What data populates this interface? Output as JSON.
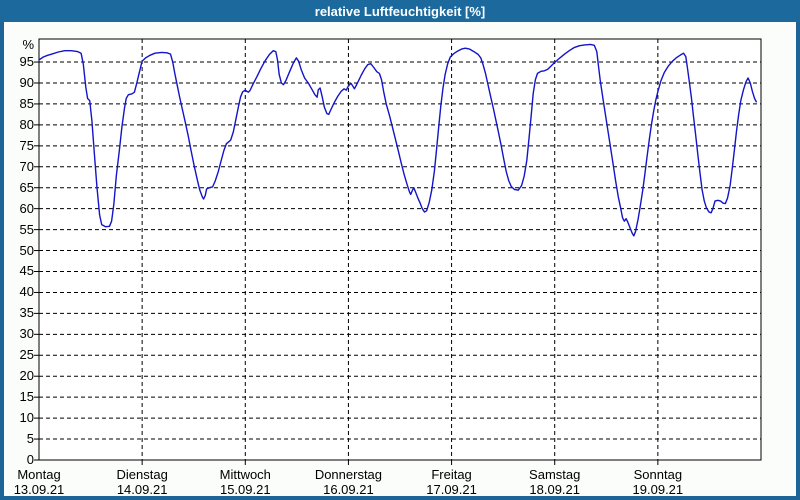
{
  "window": {
    "title": "relative Luftfeuchtigkeit [%]"
  },
  "colors": {
    "titlebar_bg": "#1b699d",
    "frame": "#1f6496",
    "content_bg": "#fbfdfa",
    "plot_bg": "#ffffff",
    "grid": "#000000",
    "line": "#1414c8",
    "title_text": "#ffffff",
    "axis_text": "#000000"
  },
  "chart_data": {
    "type": "line",
    "title": "relative Luftfeuchtigkeit [%]",
    "unit_label": "%",
    "ylabel": "relative Luftfeuchtigkeit",
    "ylim": [
      0,
      100.5
    ],
    "y_ticks": [
      0,
      5,
      10,
      15,
      20,
      25,
      30,
      35,
      40,
      45,
      50,
      55,
      60,
      65,
      70,
      75,
      80,
      85,
      90,
      95
    ],
    "grid": "dashed",
    "legend_position": "none",
    "x_hours_total": 168,
    "x_days": [
      {
        "name": "Montag",
        "date": "13.09.21"
      },
      {
        "name": "Dienstag",
        "date": "14.09.21"
      },
      {
        "name": "Mittwoch",
        "date": "15.09.21"
      },
      {
        "name": "Donnerstag",
        "date": "16.09.21"
      },
      {
        "name": "Freitag",
        "date": "17.09.21"
      },
      {
        "name": "Samstag",
        "date": "18.09.21"
      },
      {
        "name": "Sonntag",
        "date": "19.09.21"
      }
    ],
    "series": [
      {
        "name": "relative Luftfeuchtigkeit [%]",
        "color": "#1414c8",
        "points": [
          [
            0,
            95.5
          ],
          [
            1,
            96.2
          ],
          [
            2,
            96.6
          ],
          [
            3,
            96.9
          ],
          [
            4.5,
            97.4
          ],
          [
            6,
            97.7
          ],
          [
            7.5,
            97.7
          ],
          [
            9,
            97.5
          ],
          [
            9.8,
            97.1
          ],
          [
            10.3,
            94.5
          ],
          [
            10.9,
            89
          ],
          [
            11.3,
            86.3
          ],
          [
            11.8,
            85.8
          ],
          [
            12.3,
            81
          ],
          [
            12.9,
            73
          ],
          [
            13.5,
            65
          ],
          [
            14.1,
            58.5
          ],
          [
            14.6,
            56.2
          ],
          [
            15.5,
            55.7
          ],
          [
            16.4,
            55.8
          ],
          [
            16.9,
            57
          ],
          [
            17.4,
            61
          ],
          [
            18,
            68
          ],
          [
            18.7,
            74
          ],
          [
            19.3,
            79.5
          ],
          [
            19.9,
            84
          ],
          [
            20.3,
            86.3
          ],
          [
            20.8,
            87.2
          ],
          [
            21.6,
            87.4
          ],
          [
            22.2,
            87.8
          ],
          [
            22.7,
            89.8
          ],
          [
            23.3,
            92.3
          ],
          [
            24,
            95.2
          ],
          [
            24.8,
            96
          ],
          [
            25.8,
            96.6
          ],
          [
            27,
            97.1
          ],
          [
            28.5,
            97.3
          ],
          [
            29.8,
            97.2
          ],
          [
            30.6,
            96.9
          ],
          [
            31.1,
            95
          ],
          [
            31.6,
            92.3
          ],
          [
            32.1,
            89.7
          ],
          [
            32.7,
            86.8
          ],
          [
            33.3,
            84
          ],
          [
            34,
            80.8
          ],
          [
            34.7,
            77.5
          ],
          [
            35.4,
            73.8
          ],
          [
            36.1,
            70.3
          ],
          [
            36.8,
            67
          ],
          [
            37.4,
            64.5
          ],
          [
            38,
            62.8
          ],
          [
            38.3,
            62.3
          ],
          [
            38.7,
            63.2
          ],
          [
            39,
            64.7
          ],
          [
            39.6,
            65
          ],
          [
            40.4,
            65.2
          ],
          [
            41,
            66.6
          ],
          [
            41.7,
            68.8
          ],
          [
            42.4,
            71.5
          ],
          [
            43,
            73.8
          ],
          [
            43.6,
            75.5
          ],
          [
            44.2,
            76
          ],
          [
            44.6,
            76.4
          ],
          [
            45.2,
            78.3
          ],
          [
            45.8,
            81.2
          ],
          [
            46.4,
            84.3
          ],
          [
            46.9,
            86.7
          ],
          [
            47.4,
            87.9
          ],
          [
            48,
            88.3
          ],
          [
            48.4,
            88
          ],
          [
            48.7,
            87.8
          ],
          [
            49.1,
            88.2
          ],
          [
            49.8,
            89.7
          ],
          [
            50.7,
            91.5
          ],
          [
            51.6,
            93.4
          ],
          [
            52.6,
            95.3
          ],
          [
            53.6,
            96.8
          ],
          [
            54.5,
            97.7
          ],
          [
            55.1,
            97.5
          ],
          [
            55.5,
            95.5
          ],
          [
            55.9,
            92
          ],
          [
            56.4,
            90
          ],
          [
            56.9,
            89.6
          ],
          [
            57.5,
            90.7
          ],
          [
            58.3,
            92.7
          ],
          [
            59.2,
            94.8
          ],
          [
            59.9,
            96
          ],
          [
            60.4,
            95.2
          ],
          [
            61,
            93.2
          ],
          [
            61.8,
            91.2
          ],
          [
            62.7,
            89.9
          ],
          [
            63.5,
            88.5
          ],
          [
            64.2,
            87.2
          ],
          [
            64.7,
            86.6
          ],
          [
            65,
            88.4
          ],
          [
            65.4,
            88.8
          ],
          [
            65.9,
            86.7
          ],
          [
            66.4,
            84.2
          ],
          [
            67,
            82.7
          ],
          [
            67.4,
            82.5
          ],
          [
            68,
            83.8
          ],
          [
            68.7,
            85.3
          ],
          [
            69.5,
            86.8
          ],
          [
            70.3,
            88
          ],
          [
            71,
            88.6
          ],
          [
            71.5,
            88.3
          ],
          [
            72,
            89.3
          ],
          [
            72.6,
            89.9
          ],
          [
            73,
            89.3
          ],
          [
            73.4,
            88.6
          ],
          [
            73.8,
            89.4
          ],
          [
            74.3,
            90.4
          ],
          [
            75,
            91.9
          ],
          [
            75.8,
            93.4
          ],
          [
            76.5,
            94.4
          ],
          [
            77.2,
            94.6
          ],
          [
            77.9,
            93.7
          ],
          [
            78.6,
            92.7
          ],
          [
            79.2,
            92.3
          ],
          [
            79.7,
            90.8
          ],
          [
            80.2,
            87.9
          ],
          [
            80.8,
            85
          ],
          [
            81.5,
            82.4
          ],
          [
            82.2,
            79.6
          ],
          [
            82.9,
            76.7
          ],
          [
            83.6,
            73.8
          ],
          [
            84.3,
            70.8
          ],
          [
            85,
            68
          ],
          [
            85.7,
            65.6
          ],
          [
            86.2,
            64
          ],
          [
            86.5,
            63.4
          ],
          [
            86.9,
            64.4
          ],
          [
            87.2,
            65
          ],
          [
            87.6,
            64
          ],
          [
            88.2,
            62.4
          ],
          [
            88.7,
            61.3
          ],
          [
            89.2,
            60
          ],
          [
            89.7,
            59.2
          ],
          [
            90.2,
            59.5
          ],
          [
            90.8,
            61.5
          ],
          [
            91.4,
            64.5
          ],
          [
            92,
            69
          ],
          [
            92.5,
            74
          ],
          [
            93,
            79.5
          ],
          [
            93.5,
            84.5
          ],
          [
            94,
            88.8
          ],
          [
            94.5,
            92
          ],
          [
            95.1,
            94.6
          ],
          [
            95.7,
            96.2
          ],
          [
            96.5,
            97
          ],
          [
            97.4,
            97.6
          ],
          [
            98.3,
            98.1
          ],
          [
            99.2,
            98.3
          ],
          [
            100.2,
            98.1
          ],
          [
            101.2,
            97.5
          ],
          [
            102.2,
            96.8
          ],
          [
            102.8,
            96
          ],
          [
            103.3,
            94.5
          ],
          [
            103.9,
            92.3
          ],
          [
            104.5,
            89.5
          ],
          [
            105.1,
            86.7
          ],
          [
            105.7,
            84
          ],
          [
            106.3,
            81.2
          ],
          [
            106.9,
            78.3
          ],
          [
            107.5,
            75.3
          ],
          [
            108.1,
            72
          ],
          [
            108.7,
            68.9
          ],
          [
            109.3,
            66.7
          ],
          [
            109.9,
            65.3
          ],
          [
            110.6,
            64.6
          ],
          [
            111.5,
            64.4
          ],
          [
            112.3,
            65.5
          ],
          [
            112.9,
            67.8
          ],
          [
            113.5,
            71.5
          ],
          [
            114,
            76.5
          ],
          [
            114.5,
            82
          ],
          [
            115,
            87.5
          ],
          [
            115.5,
            90.8
          ],
          [
            116,
            92.3
          ],
          [
            116.8,
            92.8
          ],
          [
            117.6,
            92.9
          ],
          [
            118.4,
            93.3
          ],
          [
            119.3,
            94.2
          ],
          [
            120.2,
            95.1
          ],
          [
            121.2,
            96
          ],
          [
            122.3,
            96.9
          ],
          [
            123.5,
            97.8
          ],
          [
            124.6,
            98.5
          ],
          [
            125.8,
            98.9
          ],
          [
            127,
            99.1
          ],
          [
            128.3,
            99.2
          ],
          [
            129.2,
            99
          ],
          [
            129.8,
            97.5
          ],
          [
            130.2,
            94
          ],
          [
            130.6,
            90.5
          ],
          [
            131.2,
            86.5
          ],
          [
            131.8,
            82.5
          ],
          [
            132.4,
            78.5
          ],
          [
            133,
            74.5
          ],
          [
            133.6,
            70.5
          ],
          [
            134.2,
            66.5
          ],
          [
            134.8,
            62.8
          ],
          [
            135.3,
            60.3
          ],
          [
            135.8,
            57.8
          ],
          [
            136.2,
            57
          ],
          [
            136.6,
            57.6
          ],
          [
            137,
            56.8
          ],
          [
            137.5,
            55.5
          ],
          [
            138,
            54.2
          ],
          [
            138.4,
            53.5
          ],
          [
            138.8,
            54.5
          ],
          [
            139.4,
            57.5
          ],
          [
            139.9,
            60.5
          ],
          [
            140.5,
            64.5
          ],
          [
            141,
            68.5
          ],
          [
            141.5,
            72.5
          ],
          [
            142,
            76.5
          ],
          [
            142.5,
            80
          ],
          [
            143,
            83.2
          ],
          [
            143.5,
            85.8
          ],
          [
            144,
            88
          ],
          [
            144.7,
            90.5
          ],
          [
            145.5,
            92.5
          ],
          [
            146.4,
            94
          ],
          [
            147.4,
            95.2
          ],
          [
            148.4,
            96.1
          ],
          [
            149.3,
            96.7
          ],
          [
            150,
            97.1
          ],
          [
            150.5,
            96.3
          ],
          [
            150.9,
            93.5
          ],
          [
            151.3,
            90.5
          ],
          [
            151.8,
            86.5
          ],
          [
            152.3,
            82
          ],
          [
            152.8,
            77.5
          ],
          [
            153.3,
            73
          ],
          [
            153.8,
            68.5
          ],
          [
            154.3,
            64.5
          ],
          [
            154.8,
            61.8
          ],
          [
            155.3,
            60.2
          ],
          [
            155.9,
            59.2
          ],
          [
            156.4,
            59
          ],
          [
            156.8,
            60
          ],
          [
            157.3,
            61.8
          ],
          [
            158,
            62
          ],
          [
            158.6,
            61.8
          ],
          [
            159.2,
            61.3
          ],
          [
            159.7,
            61.2
          ],
          [
            160.2,
            62.5
          ],
          [
            160.8,
            65.5
          ],
          [
            161.3,
            69.5
          ],
          [
            161.8,
            74
          ],
          [
            162.3,
            78.5
          ],
          [
            162.8,
            82.5
          ],
          [
            163.3,
            85.8
          ],
          [
            163.9,
            88.3
          ],
          [
            164.5,
            90.3
          ],
          [
            165,
            91.2
          ],
          [
            165.5,
            90
          ],
          [
            166,
            88
          ],
          [
            166.5,
            86.3
          ],
          [
            166.9,
            85.5
          ]
        ]
      }
    ]
  }
}
